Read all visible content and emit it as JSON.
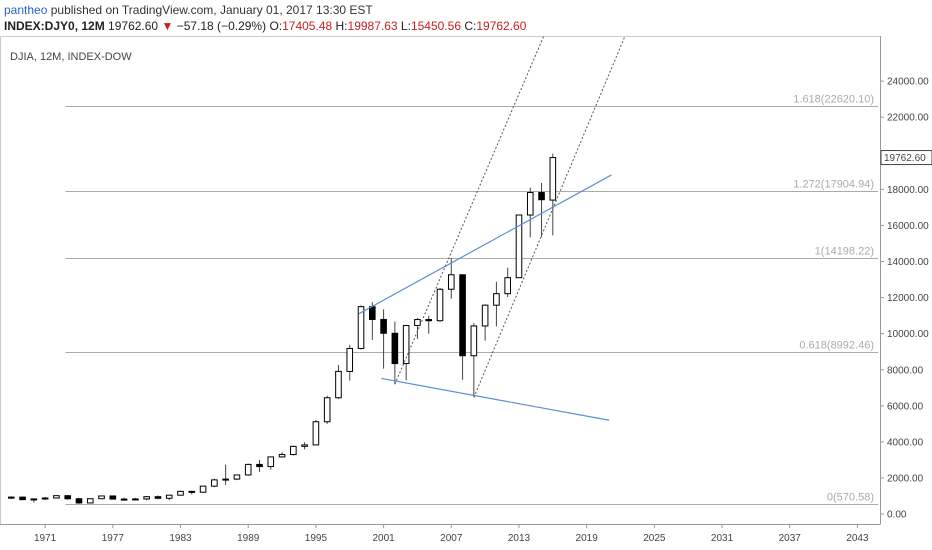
{
  "header": {
    "user": "pantheo",
    "published": "published on TradingView.com, January 01, 2017 13:30 EST",
    "symbol": "INDEX:DJY0, 12M",
    "price": "19762.60",
    "change_arrow": "▼",
    "change": "−57.18 (−0.29%)",
    "o_label": "O:",
    "o_val": "17405.48",
    "h_label": "H:",
    "h_val": "19987.63",
    "l_label": "L:",
    "l_val": "15450.56",
    "c_label": "C:",
    "c_val": "19762.60"
  },
  "chart_data": {
    "type": "candlestick",
    "title": "DJIA, 12M, INDEX-DOW",
    "y_ticks": [
      0,
      2000,
      4000,
      6000,
      8000,
      10000,
      12000,
      14000,
      16000,
      18000,
      20000,
      22000,
      24000
    ],
    "y_tick_labels": [
      "0.00",
      "2000.00",
      "4000.00",
      "6000.00",
      "8000.00",
      "10000.00",
      "12000.00",
      "14000.00",
      "16000.00",
      "18000.00",
      "20000.00",
      "22000.00",
      "24000.00"
    ],
    "x_ticks": [
      1971,
      1977,
      1983,
      1989,
      1995,
      2001,
      2007,
      2013,
      2019,
      2025,
      2031,
      2037,
      2043
    ],
    "ylim": [
      -550,
      26500
    ],
    "xlim": [
      1967.0,
      2045.0
    ],
    "last_price_label": "19762.60",
    "fib_levels": [
      {
        "label": "1.618(22620.10)",
        "value": 22620.1
      },
      {
        "label": "1.272(17904.94)",
        "value": 17904.94
      },
      {
        "label": "1(14198.22)",
        "value": 14198.22
      },
      {
        "label": "0.618(8992.46)",
        "value": 8992.46
      },
      {
        "label": "0(570.58)",
        "value": 570.58
      }
    ],
    "candles": [
      {
        "year": 1968,
        "o": 900,
        "h": 990,
        "l": 830,
        "c": 940
      },
      {
        "year": 1969,
        "o": 940,
        "h": 970,
        "l": 770,
        "c": 800
      },
      {
        "year": 1970,
        "o": 800,
        "h": 840,
        "l": 630,
        "c": 840
      },
      {
        "year": 1971,
        "o": 840,
        "h": 950,
        "l": 790,
        "c": 890
      },
      {
        "year": 1972,
        "o": 890,
        "h": 1040,
        "l": 890,
        "c": 1020
      },
      {
        "year": 1973,
        "o": 1020,
        "h": 1050,
        "l": 790,
        "c": 850
      },
      {
        "year": 1974,
        "o": 850,
        "h": 890,
        "l": 570,
        "c": 616
      },
      {
        "year": 1975,
        "o": 616,
        "h": 880,
        "l": 616,
        "c": 852
      },
      {
        "year": 1976,
        "o": 852,
        "h": 1015,
        "l": 850,
        "c": 1005
      },
      {
        "year": 1977,
        "o": 1005,
        "h": 1015,
        "l": 800,
        "c": 831
      },
      {
        "year": 1978,
        "o": 831,
        "h": 910,
        "l": 740,
        "c": 805
      },
      {
        "year": 1979,
        "o": 805,
        "h": 900,
        "l": 790,
        "c": 839
      },
      {
        "year": 1980,
        "o": 839,
        "h": 1000,
        "l": 760,
        "c": 964
      },
      {
        "year": 1981,
        "o": 964,
        "h": 1030,
        "l": 820,
        "c": 875
      },
      {
        "year": 1982,
        "o": 875,
        "h": 1070,
        "l": 770,
        "c": 1047
      },
      {
        "year": 1983,
        "o": 1047,
        "h": 1290,
        "l": 1030,
        "c": 1259
      },
      {
        "year": 1984,
        "o": 1259,
        "h": 1290,
        "l": 1080,
        "c": 1212
      },
      {
        "year": 1985,
        "o": 1212,
        "h": 1560,
        "l": 1180,
        "c": 1547
      },
      {
        "year": 1986,
        "o": 1547,
        "h": 1960,
        "l": 1500,
        "c": 1896
      },
      {
        "year": 1987,
        "o": 1896,
        "h": 2740,
        "l": 1620,
        "c": 1939
      },
      {
        "year": 1988,
        "o": 1939,
        "h": 2190,
        "l": 1880,
        "c": 2169
      },
      {
        "year": 1989,
        "o": 2169,
        "h": 2800,
        "l": 2120,
        "c": 2753
      },
      {
        "year": 1990,
        "o": 2753,
        "h": 3000,
        "l": 2340,
        "c": 2634
      },
      {
        "year": 1991,
        "o": 2634,
        "h": 3170,
        "l": 2470,
        "c": 3169
      },
      {
        "year": 1992,
        "o": 3169,
        "h": 3440,
        "l": 3130,
        "c": 3301
      },
      {
        "year": 1993,
        "o": 3301,
        "h": 3800,
        "l": 3240,
        "c": 3754
      },
      {
        "year": 1994,
        "o": 3754,
        "h": 3980,
        "l": 3590,
        "c": 3834
      },
      {
        "year": 1995,
        "o": 3834,
        "h": 5220,
        "l": 3830,
        "c": 5117
      },
      {
        "year": 1996,
        "o": 5117,
        "h": 6560,
        "l": 5000,
        "c": 6448
      },
      {
        "year": 1997,
        "o": 6448,
        "h": 8260,
        "l": 6390,
        "c": 7908
      },
      {
        "year": 1998,
        "o": 7908,
        "h": 9380,
        "l": 7400,
        "c": 9181
      },
      {
        "year": 1999,
        "o": 9181,
        "h": 11570,
        "l": 9120,
        "c": 11497
      },
      {
        "year": 2000,
        "o": 11497,
        "h": 11750,
        "l": 9650,
        "c": 10787
      },
      {
        "year": 2001,
        "o": 10787,
        "h": 11350,
        "l": 8060,
        "c": 10021
      },
      {
        "year": 2002,
        "o": 10021,
        "h": 10670,
        "l": 7200,
        "c": 8342
      },
      {
        "year": 2003,
        "o": 8342,
        "h": 10460,
        "l": 7420,
        "c": 10454
      },
      {
        "year": 2004,
        "o": 10454,
        "h": 10870,
        "l": 9710,
        "c": 10783
      },
      {
        "year": 2005,
        "o": 10783,
        "h": 10990,
        "l": 10000,
        "c": 10718
      },
      {
        "year": 2006,
        "o": 10718,
        "h": 12530,
        "l": 10660,
        "c": 12463
      },
      {
        "year": 2007,
        "o": 12463,
        "h": 14200,
        "l": 11940,
        "c": 13265
      },
      {
        "year": 2008,
        "o": 13265,
        "h": 13280,
        "l": 7450,
        "c": 8776
      },
      {
        "year": 2009,
        "o": 8776,
        "h": 10580,
        "l": 6470,
        "c": 10428
      },
      {
        "year": 2010,
        "o": 10428,
        "h": 11630,
        "l": 9610,
        "c": 11578
      },
      {
        "year": 2011,
        "o": 11578,
        "h": 12880,
        "l": 10400,
        "c": 12218
      },
      {
        "year": 2012,
        "o": 12218,
        "h": 13660,
        "l": 12030,
        "c": 13104
      },
      {
        "year": 2013,
        "o": 13104,
        "h": 16590,
        "l": 13080,
        "c": 16577
      },
      {
        "year": 2014,
        "o": 16577,
        "h": 18100,
        "l": 15340,
        "c": 17823
      },
      {
        "year": 2015,
        "o": 17823,
        "h": 18350,
        "l": 15370,
        "c": 17425
      },
      {
        "year": 2016,
        "o": 17405.48,
        "h": 19987.63,
        "l": 15450.56,
        "c": 19762.6
      }
    ],
    "trendlines": [
      {
        "kind": "solid",
        "x1": 1998.8,
        "y1": 11100,
        "x2": 2021.2,
        "y2": 18800
      },
      {
        "kind": "solid",
        "x1": 2000.8,
        "y1": 7520,
        "x2": 2021.0,
        "y2": 5200
      },
      {
        "kind": "dotted",
        "x1": 2002.0,
        "y1": 7200,
        "x2": 2015.2,
        "y2": 26500
      },
      {
        "kind": "dotted",
        "x1": 2009.0,
        "y1": 6470,
        "x2": 2022.4,
        "y2": 26500
      }
    ]
  }
}
